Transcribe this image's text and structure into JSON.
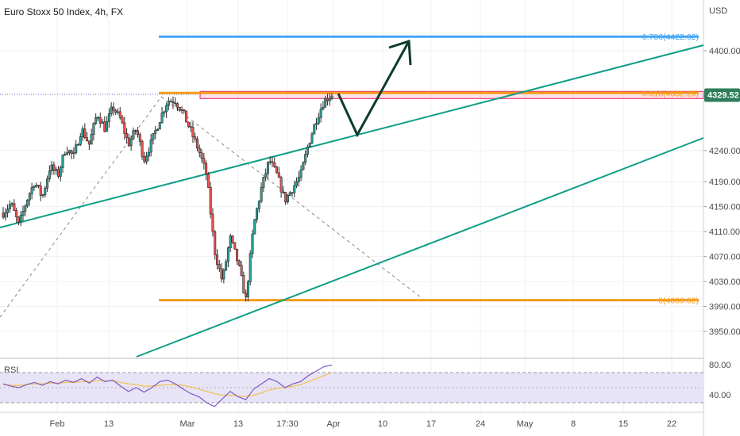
{
  "title": "Euro Stoxx 50 Index, 4h, FX",
  "currency": "USD",
  "last_price": "4329.52",
  "rsi_label": "RSI",
  "colors": {
    "up": "#26a69a",
    "down": "#ef5350",
    "candle_body": "#2e2e2e",
    "fib_blue": "#42a5f5",
    "fib_orange": "#f59b1a",
    "channel": "#0e9e85",
    "resistance_box": "#e91e63",
    "projection": "#0d3b2e",
    "rsi_line": "#7e57c2",
    "rsi_ma": "#f2c14e",
    "rsi_band": "#e8e4f7",
    "price_tag": "#2e7d5b"
  },
  "chart_data": {
    "type": "candlestick",
    "title": "Euro Stoxx 50 Index, 4h, FX",
    "price_axis": {
      "unit": "USD",
      "ticks": [
        4400,
        4240,
        4190,
        4150,
        4110,
        4070,
        4030,
        3990,
        3950
      ],
      "tick_labels": [
        "4400.00",
        "4240.00",
        "4190.00",
        "4150.00",
        "4110.00",
        "4070.00",
        "4030.00",
        "3990.00",
        "3950.00"
      ]
    },
    "time_axis": {
      "tick_labels": [
        "Feb",
        "13",
        "Mar",
        "13",
        "17:30",
        "Apr",
        "10",
        "17",
        "24",
        "May",
        "8",
        "15",
        "22"
      ]
    },
    "fib_levels": [
      {
        "ratio_label": "0.786",
        "price": 4422.62,
        "label": "0.786(4422.62)"
      },
      {
        "ratio_label": "0.618",
        "price": 4332.29,
        "label": "0.618(4332.29)"
      },
      {
        "ratio_label": "0",
        "price": 4000.02,
        "label": "0(4000.02)"
      }
    ],
    "last_price": 4329.52,
    "price_path": [
      4140,
      4155,
      4120,
      4160,
      4190,
      4165,
      4215,
      4200,
      4245,
      4230,
      4275,
      4250,
      4300,
      4275,
      4310,
      4290,
      4250,
      4275,
      4225,
      4255,
      4290,
      4320,
      4320,
      4300,
      4270,
      4240,
      4200,
      4080,
      4030,
      4100,
      4060,
      4000,
      4120,
      4180,
      4225,
      4200,
      4160,
      4180,
      4200,
      4250,
      4290,
      4320,
      4330
    ],
    "rsi": {
      "label": "RSI",
      "ticks": [
        80,
        40
      ],
      "tick_labels": [
        "80.00",
        "40.00"
      ],
      "band": [
        30,
        70
      ],
      "values": [
        55,
        52,
        50,
        54,
        57,
        53,
        58,
        55,
        60,
        57,
        62,
        56,
        64,
        58,
        60,
        52,
        45,
        50,
        44,
        50,
        58,
        60,
        55,
        48,
        42,
        38,
        30,
        25,
        35,
        45,
        38,
        34,
        48,
        55,
        62,
        58,
        50,
        55,
        58,
        66,
        72,
        78,
        80
      ],
      "ma": [
        54,
        53,
        53,
        54,
        55,
        55,
        56,
        56,
        57,
        57,
        58,
        58,
        59,
        59,
        59,
        57,
        55,
        54,
        52,
        52,
        53,
        54,
        54,
        53,
        51,
        48,
        45,
        42,
        40,
        40,
        39,
        38,
        40,
        43,
        47,
        49,
        50,
        52,
        54,
        58,
        62,
        66,
        70
      ]
    }
  }
}
